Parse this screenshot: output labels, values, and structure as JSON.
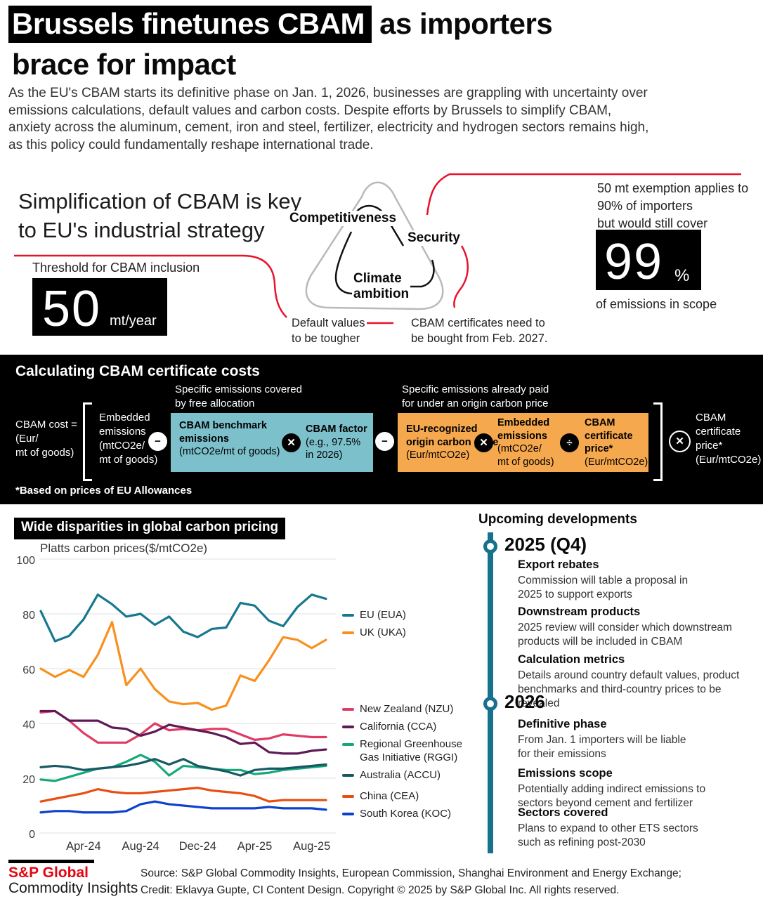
{
  "header": {
    "title_highlight": "Brussels finetunes CBAM",
    "title_rest": " as importers",
    "title_line2": "brace for impact",
    "intro": "As the EU's CBAM starts its definitive phase on Jan. 1, 2026, businesses are grappling with uncertainty over emissions calculations, default values and carbon costs. Despite efforts by Brussels to simplify CBAM, anxiety across the aluminum, cement, iron and steel, fertilizer, electricity and hydrogen sectors remains high, as this policy could fundamentally reshape international trade."
  },
  "strategy": {
    "heading_l1": "Simplification of CBAM is key",
    "heading_l2": "to EU's industrial strategy",
    "threshold_label": "Threshold for CBAM inclusion",
    "threshold_value": "50",
    "threshold_unit": "mt/year",
    "triangle": {
      "competitiveness": "Competitiveness",
      "security": "Security",
      "climate_l1": "Climate",
      "climate_l2": "ambition"
    },
    "note_default_l1": "Default values",
    "note_default_l2": "to be tougher",
    "note_cert_l1": "CBAM certificates need to",
    "note_cert_l2": "be bought from Feb. 2027.",
    "exemption_l1": "50 mt exemption applies to",
    "exemption_l2": "90% of importers",
    "exemption_l3": "but would still cover",
    "exemption_value": "99",
    "exemption_unit": "%",
    "exemption_caption": "of emissions in scope"
  },
  "formula": {
    "title": "Calculating CBAM certificate costs",
    "lhs_l1": "CBAM cost =",
    "lhs_l2": "(Eur/",
    "lhs_l3": "mt of goods)",
    "embedded_l1": "Embedded",
    "embedded_l2": "emissions",
    "embedded_l3": "(mtCO2e/",
    "embedded_l4": "mt of goods)",
    "free_alloc_label_l1": "Specific emissions covered",
    "free_alloc_label_l2": "by free allocation",
    "origin_label_l1": "Specific emissions already paid",
    "origin_label_l2": "for under an origin carbon price",
    "teal_box": {
      "left_bold_l1": "CBAM benchmark",
      "left_bold_l2": "emissions",
      "left_sub": "(mtCO2e/mt of goods)",
      "right_bold": "CBAM factor",
      "right_sub_l1": "(e.g., 97.5%",
      "right_sub_l2": "in 2026)"
    },
    "orange_box": {
      "a_bold_l1": "EU-recognized",
      "a_bold_l2": "origin carbon price",
      "a_sub": "(Eur/mtCO2e)",
      "b_bold_l1": "Embedded",
      "b_bold_l2": "emissions",
      "b_sub_l1": "(mtCO2e/",
      "b_sub_l2": "mt of goods)",
      "c_bold_l1": "CBAM",
      "c_bold_l2": "certificate",
      "c_bold_l3": "price*",
      "c_sub": "(Eur/mtCO2e)"
    },
    "rhs_l1": "CBAM",
    "rhs_l2": "certificate",
    "rhs_l3": "price*",
    "rhs_l4": "(Eur/mtCO2e)",
    "operators": {
      "minus": "−",
      "times": "✕",
      "divide": "÷"
    },
    "footnote": "*Based on prices of EU Allowances",
    "colors": {
      "teal_box": "#7cc0cb",
      "orange_box": "#f5a84e"
    }
  },
  "chart": {
    "title": "Wide disparities in global carbon pricing",
    "subtitle": "Platts carbon prices($/mtCO2e)"
  },
  "chart_data": {
    "type": "line",
    "title": "Wide disparities in global carbon pricing",
    "ylabel": "Platts carbon prices($/mtCO2e)",
    "ylim": [
      0,
      100
    ],
    "yticks": [
      0,
      20,
      40,
      60,
      80,
      100
    ],
    "grid": true,
    "legend_position": "right",
    "x": [
      "Jan-24",
      "Feb-24",
      "Mar-24",
      "Apr-24",
      "May-24",
      "Jun-24",
      "Jul-24",
      "Aug-24",
      "Sep-24",
      "Oct-24",
      "Nov-24",
      "Dec-24",
      "Jan-25",
      "Feb-25",
      "Mar-25",
      "Apr-25",
      "May-25",
      "Jun-25",
      "Jul-25",
      "Aug-25",
      "Sep-25"
    ],
    "x_ticks_shown": [
      "Apr-24",
      "Aug-24",
      "Dec-24",
      "Apr-25",
      "Aug-25"
    ],
    "x_tick_indices": [
      3,
      7,
      11,
      15,
      19
    ],
    "series": [
      {
        "name": "EU (EUA)",
        "color": "#17788f",
        "values": [
          81,
          70,
          72,
          78,
          87,
          83.5,
          79,
          80,
          76,
          79,
          73.5,
          71.5,
          74.5,
          75,
          84,
          83,
          77.5,
          75.5,
          82.5,
          87,
          85.5
        ]
      },
      {
        "name": "UK (UKA)",
        "color": "#f8901d",
        "values": [
          60,
          57,
          59.5,
          57,
          65,
          77,
          54,
          60,
          52.5,
          48,
          47,
          47.5,
          45,
          46.5,
          57.5,
          55.5,
          63,
          71.5,
          70.5,
          67.5,
          70.5
        ]
      },
      {
        "name": "New Zealand (NZU)",
        "color": "#e13a64",
        "values": [
          44,
          44.5,
          41,
          36.5,
          33,
          33,
          33,
          36,
          40,
          37.5,
          38,
          37.5,
          38,
          38,
          36,
          34,
          34.5,
          36,
          35.5,
          35,
          35
        ]
      },
      {
        "name": "California (CCA)",
        "color": "#5e1a55",
        "values": [
          44.5,
          44.5,
          41,
          41,
          41,
          38.5,
          38,
          35.5,
          37,
          39.5,
          38.5,
          37.5,
          36.5,
          35,
          32.5,
          33,
          29.5,
          29,
          29,
          30,
          30.5
        ]
      },
      {
        "name": "Regional Greenhouse Gas Initiative (RGGI)",
        "color": "#16a87c",
        "values": [
          19.5,
          19,
          20.5,
          22,
          23.5,
          24,
          26,
          28.5,
          26,
          21,
          24.5,
          24,
          23.5,
          23,
          23,
          21.5,
          22,
          23,
          23.5,
          24,
          24.5
        ]
      },
      {
        "name": "Australia (ACCU)",
        "color": "#175963",
        "values": [
          24,
          24.5,
          24,
          23,
          23.5,
          24,
          24.5,
          25.5,
          27,
          25,
          27,
          24.5,
          23.5,
          22.5,
          21,
          23,
          23.5,
          23.5,
          24,
          24.5,
          25
        ]
      },
      {
        "name": "China (CEA)",
        "color": "#e84e12",
        "values": [
          11.5,
          12.5,
          13.5,
          14.5,
          16,
          15,
          14.5,
          14.5,
          15,
          15.5,
          16,
          16.5,
          15.5,
          15,
          14.5,
          13.5,
          11.5,
          12,
          12,
          12,
          12
        ]
      },
      {
        "name": "South Korea (KOC)",
        "color": "#0c41cb",
        "values": [
          7.5,
          8,
          8,
          7.5,
          7.5,
          7.5,
          8,
          10.5,
          11.5,
          10.5,
          10,
          9.5,
          9,
          9,
          9,
          9,
          9.5,
          9,
          9,
          9,
          8.5
        ]
      }
    ]
  },
  "timeline": {
    "heading": "Upcoming developments",
    "groups": [
      {
        "year": "2025 (Q4)",
        "items": [
          {
            "title": "Export rebates",
            "body": "Commission will table a proposal in 2025 to support exports"
          },
          {
            "title": "Downstream products",
            "body": "2025 review will consider which downstream products will be included in CBAM"
          },
          {
            "title": "Calculation metrics",
            "body": "Details around country default values, product benchmarks and third-country prices to be revealed"
          }
        ]
      },
      {
        "year": "2026",
        "items": [
          {
            "title": "Definitive phase",
            "body": "From Jan. 1 importers will be liable for their emissions"
          },
          {
            "title": "Emissions scope",
            "body": "Potentially adding indirect emissions to sectors beyond cement and fertilizer"
          },
          {
            "title": "Sectors covered",
            "body": "Plans to expand to other ETS sectors such as refining post-2030"
          }
        ]
      }
    ]
  },
  "footer": {
    "logo_line1": "S&P Global",
    "logo_line2": "Commodity Insights",
    "source_line1": "Source: S&P Global Commodity Insights, European Commission, Shanghai Environment and Energy Exchange;",
    "source_line2": "Credit: Eklavya Gupte, CI Content Design.  Copyright © 2025 by S&P Global Inc.  All rights reserved."
  }
}
